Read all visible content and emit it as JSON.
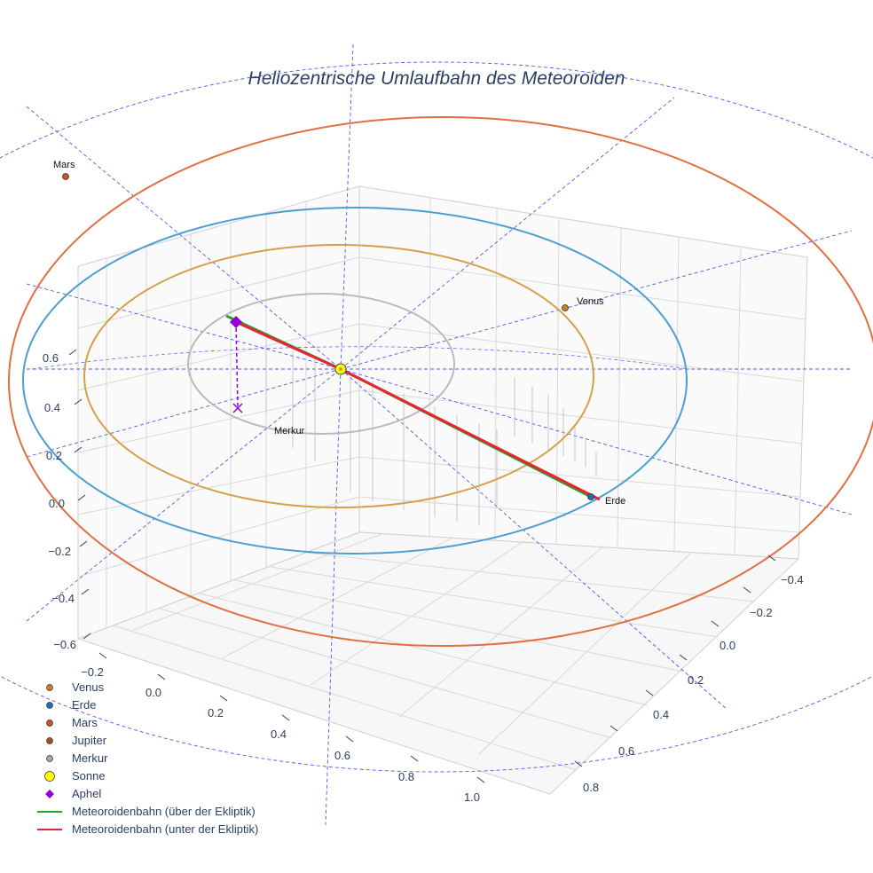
{
  "chart_data": {
    "type": "3d-orbit-scatter",
    "title": "Heliozentrische Umlaufbahn des Meteoroiden",
    "axes": {
      "x_ticks": [
        "−0.2",
        "0.0",
        "0.2",
        "0.4",
        "0.6",
        "0.8",
        "1.0"
      ],
      "y_ticks": [
        "−0.4",
        "−0.2",
        "0.0",
        "0.2",
        "0.4",
        "0.6",
        "0.8"
      ],
      "z_ticks": [
        "0.6",
        "0.4",
        "0.2",
        "0.0",
        "−0.2",
        "−0.4",
        "−0.6"
      ]
    },
    "bodies": [
      {
        "name": "Venus",
        "label": "Venus",
        "color": "#c87d2b",
        "orbit_color": "#d4a14a"
      },
      {
        "name": "Erde",
        "label": "Erde",
        "color": "#1f6fb5",
        "orbit_color": "#4a9fd0"
      },
      {
        "name": "Mars",
        "label": "Mars",
        "color": "#d0502a",
        "orbit_color": "#e07040"
      },
      {
        "name": "Jupiter",
        "label": "",
        "color": "#a0522d",
        "orbit_color": "#a0522d"
      },
      {
        "name": "Merkur",
        "label": "Merkur",
        "color": "#b0a0a0",
        "orbit_color": "#c0b8b8"
      }
    ],
    "sun": {
      "name": "Sonne",
      "color": "#ffff00"
    },
    "aphel": {
      "name": "Aphel",
      "color": "#9400d3"
    },
    "series": [
      {
        "name": "Meteoroidenbahn (über der Ekliptik)",
        "color": "#2ca02c"
      },
      {
        "name": "Meteoroidenbahn (unter der Ekliptik)",
        "color": "#e8242e"
      }
    ],
    "reference_color": "#5555ee"
  },
  "legend": {
    "items": [
      {
        "label": "Venus",
        "kind": "dot",
        "color": "#c87d2b"
      },
      {
        "label": "Erde",
        "kind": "dot",
        "color": "#1f6fb5"
      },
      {
        "label": "Mars",
        "kind": "dot",
        "color": "#d0502a"
      },
      {
        "label": "Jupiter",
        "kind": "dot",
        "color": "#a0522d"
      },
      {
        "label": "Merkur",
        "kind": "dot",
        "color": "#b0a0a0"
      },
      {
        "label": "Sonne",
        "kind": "sun",
        "color": "#ffff00"
      },
      {
        "label": "Aphel",
        "kind": "diamond",
        "color": "#9400d3"
      },
      {
        "label": "Meteoroidenbahn (über der Ekliptik)",
        "kind": "line",
        "color": "#2ca02c"
      },
      {
        "label": "Meteoroidenbahn (unter der Ekliptik)",
        "kind": "line",
        "color": "#e8242e"
      }
    ]
  }
}
